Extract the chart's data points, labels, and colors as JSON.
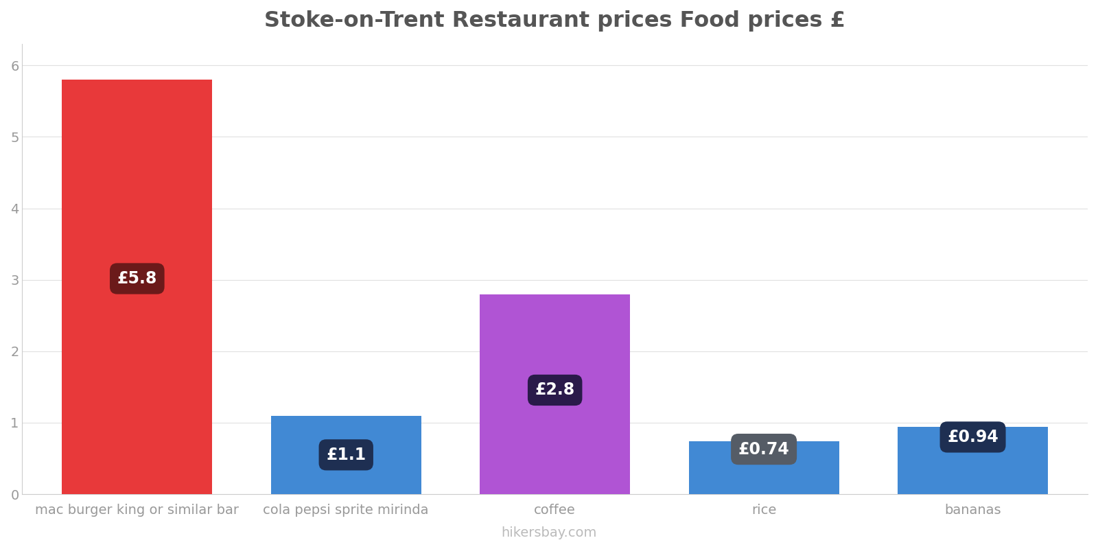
{
  "categories": [
    "mac burger king or similar bar",
    "cola pepsi sprite mirinda",
    "coffee",
    "rice",
    "bananas"
  ],
  "values": [
    5.8,
    1.1,
    2.8,
    0.74,
    0.94
  ],
  "bar_colors": [
    "#e8393a",
    "#4189d4",
    "#b054d4",
    "#4189d4",
    "#4189d4"
  ],
  "label_bg_colors": [
    "#6b1a1a",
    "#1e2f52",
    "#2a1a4a",
    "#555c66",
    "#1e2f52"
  ],
  "labels": [
    "£5.8",
    "£1.1",
    "£2.8",
    "£0.74",
    "£0.94"
  ],
  "label_positions": [
    "inside_mid",
    "inside_top",
    "inside_mid",
    "top_overlap",
    "top_overlap"
  ],
  "title": "Stoke-on-Trent Restaurant prices Food prices £",
  "ylim": [
    0,
    6.3
  ],
  "yticks": [
    0,
    1,
    2,
    3,
    4,
    5,
    6
  ],
  "footer": "hikersbay.com",
  "title_fontsize": 23,
  "label_fontsize": 17,
  "tick_fontsize": 14,
  "footer_fontsize": 14,
  "background_color": "#ffffff",
  "grid_color": "#e0e0e0",
  "title_color": "#555555",
  "tick_color": "#999999",
  "footer_color": "#bbbbbb",
  "bar_width": 0.72
}
